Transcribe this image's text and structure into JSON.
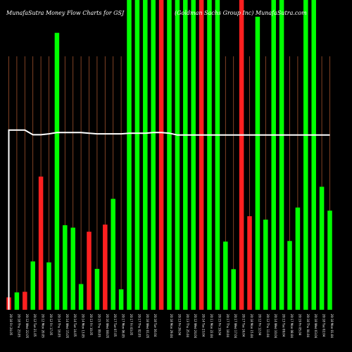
{
  "chart_data": {
    "type": "bar",
    "title_left": "MunafaSutra  Money Flow  Charts for GSJ",
    "title_right": "(Goldman  Sachs Group Inc) MunafaSutra.com",
    "colors": {
      "background": "#000000",
      "up": "#00ff00",
      "down": "#ff2020",
      "line": "#ffffff",
      "grid": "#a0522d",
      "text": "#ffffff"
    },
    "ylim": [
      0,
      100
    ],
    "categories": [
      "20:18 Fri 24.05",
      "20:18 Thu 23.05",
      "20:12 Wed 22.05",
      "20:12 Tue 21.05",
      "20:12 Mon 20.05",
      "20:12 Fri 17.05",
      "20:14 Thu 16.05",
      "20:14 Wed 15.05",
      "20:14 Tue 14.05",
      "20:14 Mon 13.05",
      "20:13 Fri 10.05",
      "20:15 Thu 09.05",
      "20:16 Wed 08.05",
      "20:17 Tue 07.05",
      "20:17 Mon 06.05",
      "20:17 Fri 03.05",
      "20:17 Thu 02.05",
      "20:18 Wed 01.05",
      "20:18 Tue 30.04",
      "",
      "20:18 Mon 29.04",
      "20:13 Fri 26.04",
      "20:13 Thu 25.04",
      "20:12 Wed 24.04",
      "20:14 Tue 23.04",
      "20:11 Mon 22.04",
      "20:15 Fri 19.04",
      "20:17 Thu 18.04",
      "20:17 Wed 17.04",
      "20:17 Tue 16.04",
      "20:18 Mon 15.04",
      "20:12 Fri 12.04",
      "20:12 Thu 11.04",
      "20:14 Wed 10.04",
      "20:13 Tue 09.04",
      "20:17 Mon 08.04",
      "20:19 Fri 05.04",
      "20:18 Thu 04.04",
      "20:18 Wed 03.04",
      "20:18 Tue 02.04",
      "20:18 Mon 01.04"
    ],
    "series": [
      {
        "values": [
          4.0,
          5.6,
          5.8,
          15.6,
          43.0,
          15.3,
          89.4,
          27.3,
          26.5,
          8.3,
          25.2,
          13.2,
          27.5,
          35.8,
          6.6,
          100,
          100,
          100,
          100,
          100,
          100,
          100,
          100,
          100,
          100,
          100,
          100,
          22.0,
          13.1,
          100,
          30.2,
          94.6,
          29.1,
          100,
          100,
          22.2,
          33.0,
          100,
          100,
          39.7,
          32.0
        ],
        "directions": [
          "down",
          "up",
          "down",
          "up",
          "down",
          "up",
          "up",
          "up",
          "up",
          "up",
          "down",
          "up",
          "down",
          "up",
          "up",
          "up",
          "up",
          "up",
          "up",
          "down",
          "up",
          "up",
          "up",
          "up",
          "down",
          "up",
          "up",
          "up",
          "up",
          "down",
          "down",
          "up",
          "up",
          "up",
          "up",
          "up",
          "up",
          "up",
          "up",
          "up",
          "up"
        ]
      },
      {
        "type": "line",
        "values": [
          58.0,
          58.0,
          58.0,
          56.5,
          56.5,
          56.8,
          57.2,
          57.2,
          57.2,
          57.2,
          57.0,
          56.8,
          56.8,
          56.8,
          56.8,
          57.0,
          57.0,
          57.0,
          57.2,
          57.2,
          57.0,
          56.4,
          56.4,
          56.4,
          56.4,
          56.4,
          56.4,
          56.4,
          56.4,
          56.4,
          56.4,
          56.4,
          56.4,
          56.4,
          56.4,
          56.4,
          56.4,
          56.4,
          56.4,
          56.4,
          56.4
        ]
      }
    ]
  }
}
